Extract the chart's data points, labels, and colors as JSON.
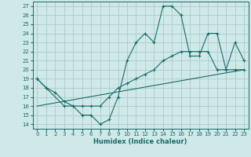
{
  "xlabel": "Humidex (Indice chaleur)",
  "background_color": "#cfe8e8",
  "grid_color": "#aacccc",
  "line_color": "#1a6b6b",
  "xlim": [
    -0.5,
    23.5
  ],
  "ylim": [
    13.5,
    27.5
  ],
  "xticks": [
    0,
    1,
    2,
    3,
    4,
    5,
    6,
    7,
    8,
    9,
    10,
    11,
    12,
    13,
    14,
    15,
    16,
    17,
    18,
    19,
    20,
    21,
    22,
    23
  ],
  "yticks": [
    14,
    15,
    16,
    17,
    18,
    19,
    20,
    21,
    22,
    23,
    24,
    25,
    26,
    27
  ],
  "line1_x": [
    0,
    1,
    3,
    4,
    5,
    6,
    7,
    8,
    9,
    10,
    11,
    12,
    13,
    14,
    15,
    16,
    17,
    18,
    19,
    20,
    21,
    22,
    23
  ],
  "line1_y": [
    19,
    18,
    16,
    16,
    15,
    15,
    14,
    14.5,
    17,
    21,
    23,
    24,
    23,
    27,
    27,
    26,
    21.5,
    21.5,
    24,
    24,
    20,
    23,
    21
  ],
  "line2_x": [
    0,
    1,
    2,
    3,
    4,
    5,
    6,
    7,
    8,
    9,
    10,
    11,
    12,
    13,
    14,
    15,
    16,
    17,
    18,
    19,
    20,
    21,
    22,
    23
  ],
  "line2_y": [
    19,
    18,
    17.5,
    16.5,
    16,
    16,
    16,
    16,
    17,
    18,
    18.5,
    19,
    19.5,
    20,
    21,
    21.5,
    22,
    22,
    22,
    22,
    20,
    20,
    20,
    20
  ],
  "line3_x": [
    0,
    23
  ],
  "line3_y": [
    16,
    20
  ]
}
